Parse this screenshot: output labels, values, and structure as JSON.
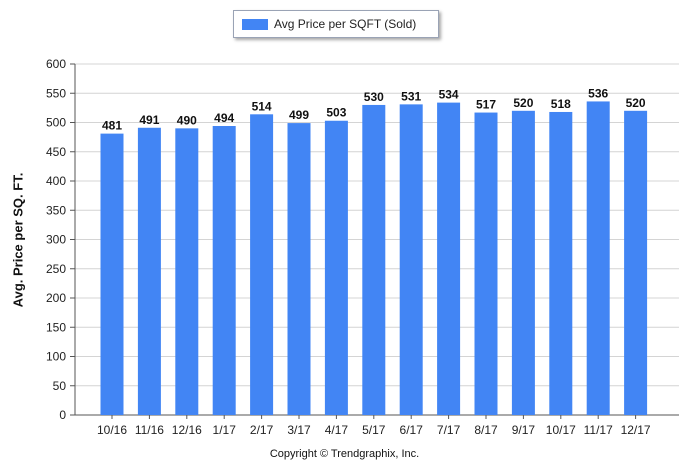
{
  "legend": {
    "label": "Avg Price per SQFT (Sold)"
  },
  "copyright": "Copyright © Trendgraphix, Inc.",
  "chart_data": {
    "type": "bar",
    "categories": [
      "10/16",
      "11/16",
      "12/16",
      "1/17",
      "2/17",
      "3/17",
      "4/17",
      "5/17",
      "6/17",
      "7/17",
      "8/17",
      "9/17",
      "10/17",
      "11/17",
      "12/17"
    ],
    "series": [
      {
        "name": "Avg Price per SQFT (Sold)",
        "values": [
          481,
          491,
          490,
          494,
          514,
          499,
          503,
          530,
          531,
          534,
          517,
          520,
          518,
          536,
          520
        ]
      }
    ],
    "xlabel": "",
    "ylabel": "Avg. Price per SQ. FT.",
    "ylim": [
      0,
      600
    ],
    "yticks": [
      0,
      50,
      100,
      150,
      200,
      250,
      300,
      350,
      400,
      450,
      500,
      550,
      600
    ],
    "grid": true,
    "bar_color": "#4285f4",
    "data_labels": true,
    "legend_position": "top-center"
  }
}
